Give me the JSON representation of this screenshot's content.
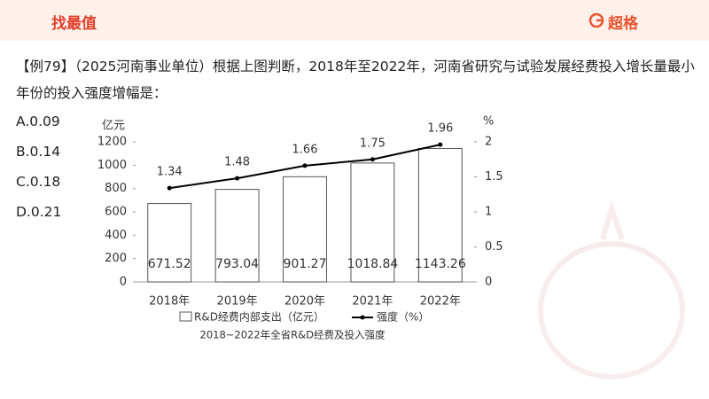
{
  "header": {
    "title": "找最值",
    "logo": "超格"
  },
  "question": "【例79】（2025河南事业单位）根据上图判断，2018年至2022年，河南省研究与试验发展经费投入增长量最小年份的投入强度增幅是：",
  "options": [
    "A.0.09",
    "B.0.14",
    "C.0.18",
    "D.0.21"
  ],
  "chart_data": {
    "type": "bar",
    "caption": "2018~2022年全省R&D经费及投入强度",
    "y_label": "亿元",
    "y2_label": "%",
    "categories": [
      "2018年",
      "2019年",
      "2020年",
      "2021年",
      "2022年"
    ],
    "series": [
      {
        "name": "R&D经费内部支出（亿元）",
        "type": "bar",
        "color": "#ffffff",
        "values": [
          671.52,
          793.04,
          901.27,
          1018.84,
          1143.26
        ]
      },
      {
        "name": "强度（%）",
        "type": "line",
        "axis": "y2",
        "color": "#000000",
        "values": [
          1.34,
          1.48,
          1.66,
          1.75,
          1.96
        ]
      }
    ],
    "ylim": [
      0,
      1200
    ],
    "yticks": [
      0,
      200,
      400,
      600,
      800,
      1000,
      1200
    ],
    "y2lim": [
      0,
      2
    ],
    "y2ticks": [
      0,
      0.5,
      1,
      1.5,
      2
    ],
    "grid": false
  }
}
